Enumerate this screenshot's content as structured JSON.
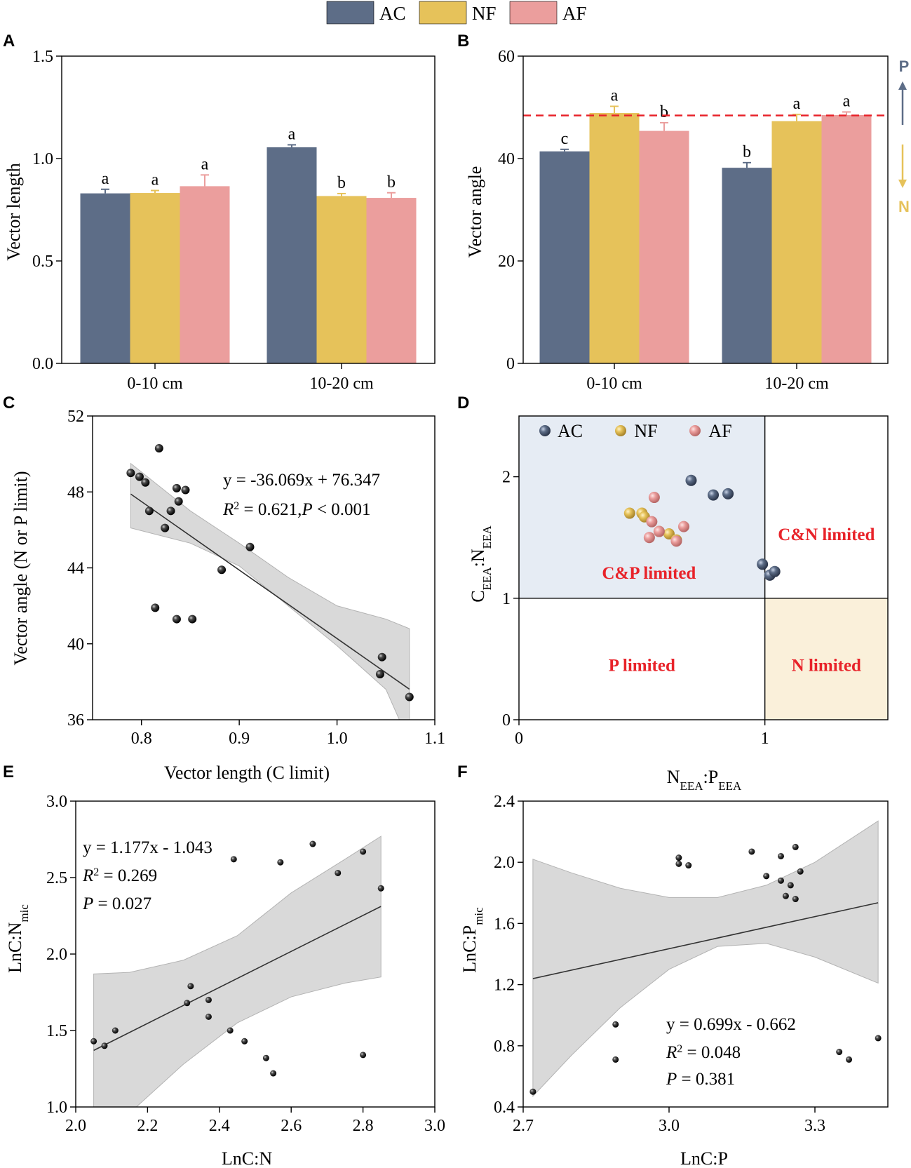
{
  "legend": {
    "items": [
      {
        "name": "AC",
        "color": "#5d6d87"
      },
      {
        "name": "NF",
        "color": "#e6c25a"
      },
      {
        "name": "AF",
        "color": "#eb9e9d"
      }
    ]
  },
  "panel_labels": {
    "a": "A",
    "b": "B",
    "c": "C",
    "d": "D",
    "e": "E",
    "f": "F"
  },
  "chart_data": [
    {
      "id": "A",
      "type": "bar",
      "ylabel": "Vector length",
      "categories": [
        "0-10 cm",
        "10-20 cm"
      ],
      "ylim": [
        0,
        1.5
      ],
      "yticks": [
        0.0,
        0.5,
        1.0,
        1.5
      ],
      "ytick_labels": [
        "0.0",
        "0.5",
        "1.0",
        "1.5"
      ],
      "series": [
        {
          "name": "AC",
          "values": [
            0.83,
            1.055
          ],
          "errors": [
            0.02,
            0.012
          ],
          "letters": [
            "a",
            "a"
          ]
        },
        {
          "name": "NF",
          "values": [
            0.832,
            0.817
          ],
          "errors": [
            0.012,
            0.012
          ],
          "letters": [
            "a",
            "b"
          ]
        },
        {
          "name": "AF",
          "values": [
            0.865,
            0.808
          ],
          "errors": [
            0.055,
            0.025
          ],
          "letters": [
            "a",
            "b"
          ]
        }
      ]
    },
    {
      "id": "B",
      "type": "bar",
      "ylabel": "Vector angle",
      "categories": [
        "0-10 cm",
        "10-20 cm"
      ],
      "ylim": [
        0,
        60
      ],
      "yticks": [
        0,
        20,
        40,
        60
      ],
      "ytick_labels": [
        "0",
        "20",
        "40",
        "60"
      ],
      "reference_line": 48.4,
      "series": [
        {
          "name": "AC",
          "values": [
            41.4,
            38.2
          ],
          "errors": [
            0.4,
            1.0
          ],
          "letters": [
            "c",
            "b"
          ]
        },
        {
          "name": "NF",
          "values": [
            48.9,
            47.3
          ],
          "errors": [
            1.3,
            1.3
          ],
          "letters": [
            "a",
            "a"
          ]
        },
        {
          "name": "AF",
          "values": [
            45.4,
            48.5
          ],
          "errors": [
            1.6,
            0.6
          ],
          "letters": [
            "b",
            "a"
          ]
        }
      ],
      "side_labels": {
        "top": "P",
        "bottom": "N",
        "top_color": "#5d6d87",
        "bottom_color": "#e6c25a"
      }
    },
    {
      "id": "C",
      "type": "scatter",
      "xlabel": "Vector length (C limit)",
      "ylabel": "Vector angle (N or P limit)",
      "xlim": [
        0.75,
        1.1
      ],
      "ylim": [
        36,
        52
      ],
      "xticks": [
        0.8,
        0.9,
        1.0,
        1.1
      ],
      "xtick_labels": [
        "0.8",
        "0.9",
        "1.0",
        "1.1"
      ],
      "yticks": [
        36,
        40,
        44,
        48,
        52
      ],
      "ytick_labels": [
        "36",
        "40",
        "44",
        "48",
        "52"
      ],
      "x": [
        0.789,
        0.798,
        0.804,
        0.808,
        0.818,
        0.824,
        0.83,
        0.836,
        0.838,
        0.845,
        0.814,
        0.836,
        0.852,
        0.882,
        0.911,
        1.044,
        1.046,
        1.074
      ],
      "y": [
        49.0,
        48.8,
        48.5,
        47.0,
        50.3,
        46.1,
        47.0,
        48.2,
        47.5,
        48.1,
        41.9,
        41.3,
        41.3,
        43.9,
        45.1,
        38.4,
        39.3,
        37.2
      ],
      "fit": {
        "slope": -36.069,
        "intercept": 76.347,
        "x_range": [
          0.789,
          1.074
        ]
      },
      "band": {
        "x": [
          0.789,
          0.85,
          0.9,
          0.95,
          1.0,
          1.05,
          1.074
        ],
        "lower": [
          46.1,
          45.3,
          44.1,
          42.0,
          39.9,
          37.6,
          34.8
        ],
        "upper": [
          49.5,
          47.0,
          45.3,
          43.5,
          42.0,
          41.3,
          40.8
        ]
      },
      "annotation": {
        "eq": "y = -36.069x + 76.347",
        "r2_prefix": "R",
        "r2_sup": "2",
        "r2_rest": " = 0.621,",
        "p_label": "P",
        "p_rest": " < 0.001"
      }
    },
    {
      "id": "D",
      "type": "scatter",
      "xlabel": {
        "main1": "N",
        "sub1": "EEA",
        "mid": ":P",
        "sub2": "EEA"
      },
      "ylabel": {
        "main1": "C",
        "sub1": "EEA",
        "mid": ":N",
        "sub2": "EEA"
      },
      "xlim": [
        0,
        1.5
      ],
      "ylim": [
        0,
        2.5
      ],
      "xticks": [
        0,
        1
      ],
      "xtick_labels": [
        "0",
        "1"
      ],
      "yticks": [
        0,
        1,
        2
      ],
      "ytick_labels": [
        "0",
        "1",
        "2"
      ],
      "quadrants": {
        "cp": "C&P limited",
        "cn": "C&N limited",
        "p": "P limited",
        "n": "N limited"
      },
      "series": [
        {
          "name": "AC",
          "x": [
            0.7,
            0.79,
            0.85,
            0.99,
            1.02,
            1.04
          ],
          "y": [
            1.97,
            1.85,
            1.86,
            1.28,
            1.19,
            1.22
          ]
        },
        {
          "name": "NF",
          "x": [
            0.45,
            0.5,
            0.51,
            0.57,
            0.61,
            0.64
          ],
          "y": [
            1.7,
            1.7,
            1.67,
            1.55,
            1.53,
            1.48
          ]
        },
        {
          "name": "AF",
          "x": [
            0.55,
            0.54,
            0.53,
            0.57,
            0.64,
            0.67
          ],
          "y": [
            1.83,
            1.63,
            1.5,
            1.55,
            1.47,
            1.59
          ]
        }
      ]
    },
    {
      "id": "E",
      "type": "scatter",
      "xlabel": "LnC:N",
      "ylabel": {
        "main": "LnC:N",
        "sub": "mic"
      },
      "xlim": [
        2.0,
        3.0
      ],
      "ylim": [
        1.0,
        3.0
      ],
      "xticks": [
        2.0,
        2.2,
        2.4,
        2.6,
        2.8,
        3.0
      ],
      "xtick_labels": [
        "2.0",
        "2.2",
        "2.4",
        "2.6",
        "2.8",
        "3.0"
      ],
      "yticks": [
        1.0,
        1.5,
        2.0,
        2.5,
        3.0
      ],
      "ytick_labels": [
        "1.0",
        "1.5",
        "2.0",
        "2.5",
        "3.0"
      ],
      "x": [
        2.05,
        2.08,
        2.11,
        2.31,
        2.32,
        2.37,
        2.37,
        2.43,
        2.47,
        2.53,
        2.55,
        2.8,
        2.44,
        2.57,
        2.66,
        2.73,
        2.8,
        2.85
      ],
      "y": [
        1.43,
        1.4,
        1.5,
        1.68,
        1.79,
        1.7,
        1.59,
        1.5,
        1.43,
        1.32,
        1.22,
        1.34,
        2.62,
        2.6,
        2.72,
        2.53,
        2.67,
        2.43
      ],
      "fit": {
        "slope": 1.177,
        "intercept": -1.043,
        "x_range": [
          2.05,
          2.85
        ]
      },
      "band": {
        "x": [
          2.05,
          2.15,
          2.3,
          2.45,
          2.6,
          2.75,
          2.85
        ],
        "lower": [
          0.95,
          0.96,
          1.28,
          1.55,
          1.72,
          1.81,
          1.85
        ],
        "upper": [
          1.87,
          1.88,
          1.96,
          2.12,
          2.4,
          2.62,
          2.77
        ]
      },
      "annotation": {
        "eq": "y = 1.177x - 1.043",
        "r2_prefix": "R",
        "r2_sup": "2",
        "r2_rest": " = 0.269",
        "p_label": "P",
        "p_rest": " = 0.027"
      }
    },
    {
      "id": "F",
      "type": "scatter",
      "xlabel": "LnC:P",
      "ylabel": {
        "main": "LnC:P",
        "sub": "mic"
      },
      "xlim": [
        2.7,
        3.45
      ],
      "ylim": [
        0.4,
        2.4
      ],
      "xticks": [
        2.7,
        3.0,
        3.3
      ],
      "xtick_labels": [
        "2.7",
        "3.0",
        "3.3"
      ],
      "yticks": [
        0.4,
        0.8,
        1.2,
        1.6,
        2.0,
        2.4
      ],
      "ytick_labels": [
        "0.4",
        "0.8",
        "1.2",
        "1.6",
        "2.0",
        "2.4"
      ],
      "x": [
        2.72,
        2.89,
        2.89,
        3.02,
        3.02,
        3.04,
        3.17,
        3.2,
        3.23,
        3.23,
        3.24,
        3.25,
        3.26,
        3.26,
        3.27,
        3.35,
        3.37,
        3.43
      ],
      "y": [
        0.5,
        0.71,
        0.94,
        1.99,
        2.03,
        1.98,
        2.07,
        1.91,
        2.04,
        1.88,
        1.78,
        1.85,
        1.76,
        2.1,
        1.94,
        0.76,
        0.71,
        0.85
      ],
      "fit": {
        "slope": 0.699,
        "intercept": -0.662,
        "x_range": [
          2.72,
          3.43
        ]
      },
      "band": {
        "x": [
          2.72,
          2.8,
          2.9,
          3.0,
          3.1,
          3.2,
          3.3,
          3.43
        ],
        "lower": [
          0.47,
          0.74,
          1.05,
          1.3,
          1.45,
          1.47,
          1.38,
          1.21
        ],
        "upper": [
          2.02,
          1.93,
          1.83,
          1.77,
          1.77,
          1.85,
          2.0,
          2.27
        ]
      },
      "annotation": {
        "eq": "y = 0.699x - 0.662",
        "r2_prefix": "R",
        "r2_sup": "2",
        "r2_rest": " = 0.048",
        "p_label": "P",
        "p_rest": " = 0.381"
      }
    }
  ]
}
